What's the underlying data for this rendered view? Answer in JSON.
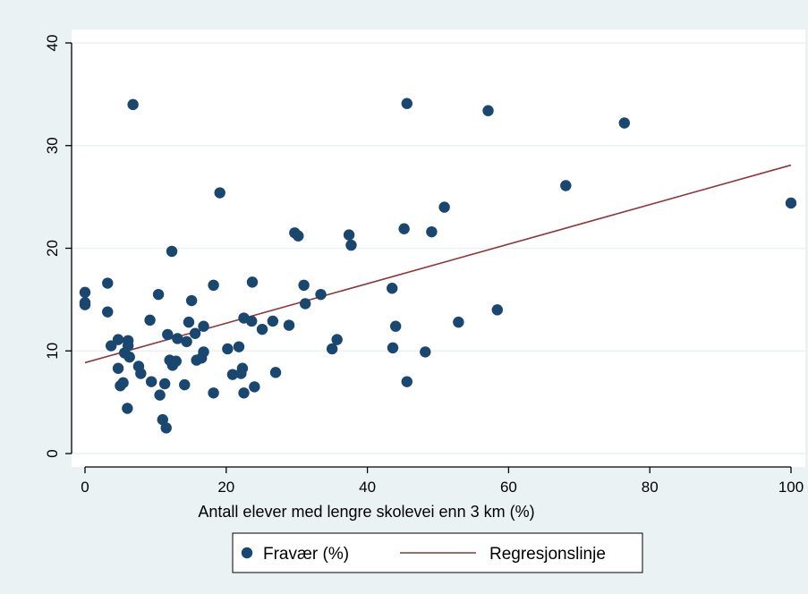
{
  "colors": {
    "outer_background": "#eaf2f3",
    "plot_background": "#ffffff",
    "point_color": "#1a476f",
    "line_color": "#90353b",
    "axis_color": "#000000"
  },
  "chart_data": {
    "type": "scatter",
    "title": "",
    "xlabel": "Antall elever med lengre skolevei enn 3 km (%)",
    "ylabel": "",
    "xlim": [
      0,
      100
    ],
    "ylim": [
      0,
      40
    ],
    "x_ticks": [
      0,
      20,
      40,
      60,
      80,
      100
    ],
    "y_ticks": [
      0,
      10,
      20,
      30,
      40
    ],
    "grid": true,
    "legend_position": "bottom",
    "series": [
      {
        "name": "Fravær (%)",
        "type": "scatter",
        "points": [
          [
            0,
            15.7
          ],
          [
            0,
            14.5
          ],
          [
            0,
            14.7
          ],
          [
            3.2,
            16.6
          ],
          [
            3.2,
            13.8
          ],
          [
            3.7,
            10.5
          ],
          [
            4.7,
            11.1
          ],
          [
            4.7,
            8.3
          ],
          [
            5.0,
            6.6
          ],
          [
            5.4,
            6.9
          ],
          [
            5.6,
            9.8
          ],
          [
            6.1,
            11.0
          ],
          [
            6.1,
            10.5
          ],
          [
            6.3,
            9.4
          ],
          [
            6.0,
            4.4
          ],
          [
            6.8,
            34.0
          ],
          [
            7.6,
            8.5
          ],
          [
            7.9,
            7.8
          ],
          [
            9.2,
            13.0
          ],
          [
            9.4,
            7.0
          ],
          [
            10.4,
            15.5
          ],
          [
            10.6,
            5.7
          ],
          [
            11.0,
            3.3
          ],
          [
            11.3,
            6.8
          ],
          [
            11.5,
            2.5
          ],
          [
            11.7,
            11.6
          ],
          [
            12.0,
            9.1
          ],
          [
            12.3,
            19.7
          ],
          [
            12.4,
            8.6
          ],
          [
            12.9,
            9.0
          ],
          [
            13.1,
            11.2
          ],
          [
            14.1,
            6.7
          ],
          [
            14.4,
            10.9
          ],
          [
            14.7,
            12.8
          ],
          [
            15.1,
            14.9
          ],
          [
            15.6,
            11.7
          ],
          [
            15.8,
            9.1
          ],
          [
            16.5,
            9.3
          ],
          [
            16.8,
            12.4
          ],
          [
            16.8,
            9.9
          ],
          [
            18.2,
            16.4
          ],
          [
            18.2,
            5.9
          ],
          [
            19.1,
            25.4
          ],
          [
            20.2,
            10.2
          ],
          [
            20.9,
            7.7
          ],
          [
            21.8,
            10.4
          ],
          [
            22.1,
            7.8
          ],
          [
            22.3,
            8.3
          ],
          [
            22.5,
            13.2
          ],
          [
            22.5,
            5.9
          ],
          [
            23.6,
            12.9
          ],
          [
            23.7,
            16.7
          ],
          [
            24.0,
            6.5
          ],
          [
            25.1,
            12.1
          ],
          [
            26.6,
            12.9
          ],
          [
            27.0,
            7.9
          ],
          [
            28.9,
            12.5
          ],
          [
            29.7,
            21.5
          ],
          [
            30.2,
            21.2
          ],
          [
            31.0,
            16.4
          ],
          [
            31.2,
            14.6
          ],
          [
            33.4,
            15.5
          ],
          [
            35.0,
            10.2
          ],
          [
            35.7,
            11.1
          ],
          [
            37.4,
            21.3
          ],
          [
            37.7,
            20.3
          ],
          [
            43.5,
            16.1
          ],
          [
            43.6,
            10.3
          ],
          [
            44.0,
            12.4
          ],
          [
            45.2,
            21.9
          ],
          [
            45.6,
            34.1
          ],
          [
            45.6,
            7.0
          ],
          [
            48.2,
            9.9
          ],
          [
            49.1,
            21.6
          ],
          [
            50.9,
            24.0
          ],
          [
            52.9,
            12.8
          ],
          [
            57.1,
            33.4
          ],
          [
            58.4,
            14.0
          ],
          [
            68.1,
            26.1
          ],
          [
            76.4,
            32.2
          ],
          [
            100,
            24.4
          ]
        ]
      },
      {
        "name": "Regresjonslinje",
        "type": "line",
        "x": [
          0,
          100
        ],
        "y": [
          8.85,
          28.1
        ]
      }
    ]
  }
}
